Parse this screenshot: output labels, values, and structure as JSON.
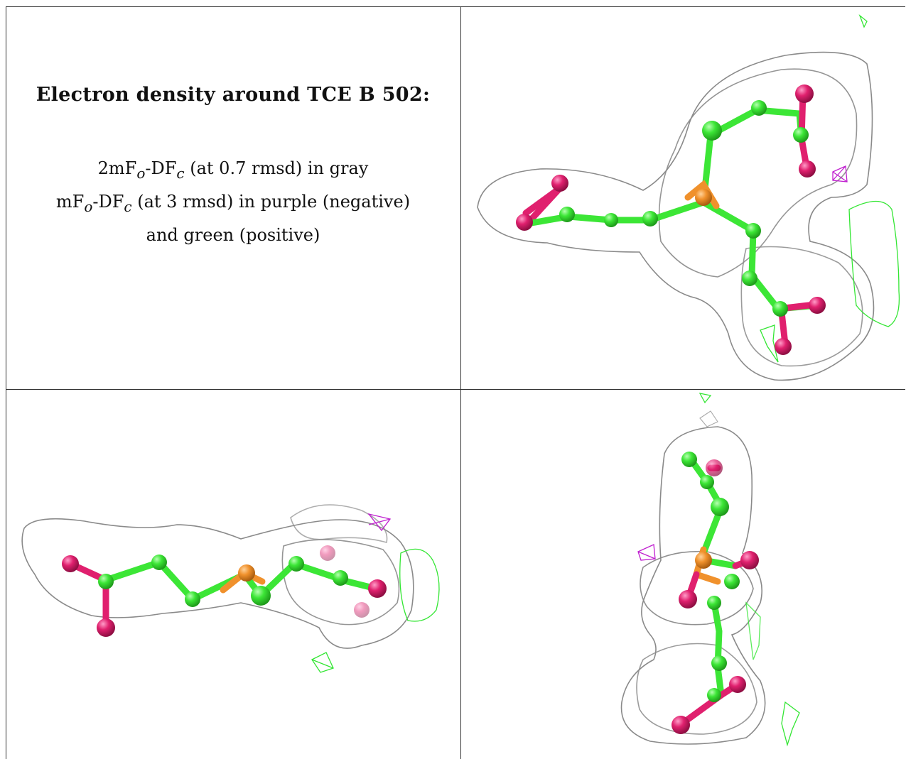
{
  "caption": {
    "title": "Electron density around TCE B 502:",
    "line1_main": "2mF",
    "line1_sub_o": "o",
    "line1_mid": "-DF",
    "line1_sub_c": "c",
    "line1_rest": " (at 0.7 rmsd) in gray",
    "line2_main": "mF",
    "line2_sub_o": "o",
    "line2_mid": "-DF",
    "line2_sub_c": "c",
    "line2_rest": " (at 3 rmsd) in purple (negative)",
    "line3": "and green (positive)"
  },
  "colors": {
    "density_gray": "#a9a9a9",
    "carbon_green": "#3ce636",
    "phosphorus_orange": "#f0912c",
    "oxygen_magenta": "#e0206e",
    "difference_positive_green": "#33e633",
    "difference_negative_purple": "#c020d0"
  },
  "panels": [
    {
      "id": "view-top-right",
      "molecule": "TCE",
      "chain": "B",
      "residue": 502
    },
    {
      "id": "view-bottom-left",
      "molecule": "TCE",
      "chain": "B",
      "residue": 502
    },
    {
      "id": "view-bottom-right",
      "molecule": "TCE",
      "chain": "B",
      "residue": 502
    }
  ]
}
